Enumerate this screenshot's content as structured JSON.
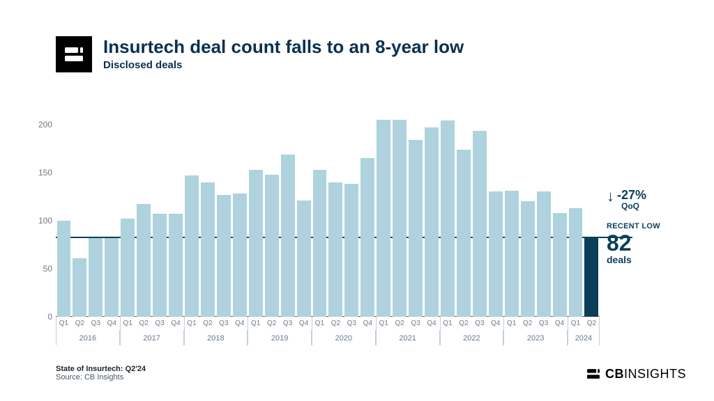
{
  "header": {
    "title": "Insurtech deal count falls to an 8-year low",
    "subtitle": "Disclosed deals"
  },
  "chart": {
    "type": "bar",
    "ylim": [
      0,
      210
    ],
    "yticks": [
      0,
      50,
      100,
      150,
      200
    ],
    "bar_color": "#aed2de",
    "highlight_color": "#0a3e5a",
    "background_color": "#ffffff",
    "reference_line_value": 82,
    "reference_line_color": "#0a3e5a",
    "years": [
      {
        "year": "2016",
        "quarters": 4
      },
      {
        "year": "2017",
        "quarters": 4
      },
      {
        "year": "2018",
        "quarters": 4
      },
      {
        "year": "2019",
        "quarters": 4
      },
      {
        "year": "2020",
        "quarters": 4
      },
      {
        "year": "2021",
        "quarters": 4
      },
      {
        "year": "2022",
        "quarters": 4
      },
      {
        "year": "2023",
        "quarters": 4
      },
      {
        "year": "2024",
        "quarters": 2
      }
    ],
    "bars": [
      {
        "label": "Q1",
        "value": 100,
        "highlight": false
      },
      {
        "label": "Q2",
        "value": 61,
        "highlight": false
      },
      {
        "label": "Q3",
        "value": 82,
        "highlight": false
      },
      {
        "label": "Q4",
        "value": 82,
        "highlight": false
      },
      {
        "label": "Q1",
        "value": 102,
        "highlight": false
      },
      {
        "label": "Q2",
        "value": 117,
        "highlight": false
      },
      {
        "label": "Q3",
        "value": 107,
        "highlight": false
      },
      {
        "label": "Q4",
        "value": 107,
        "highlight": false
      },
      {
        "label": "Q1",
        "value": 147,
        "highlight": false
      },
      {
        "label": "Q2",
        "value": 140,
        "highlight": false
      },
      {
        "label": "Q3",
        "value": 127,
        "highlight": false
      },
      {
        "label": "Q4",
        "value": 128,
        "highlight": false
      },
      {
        "label": "Q1",
        "value": 153,
        "highlight": false
      },
      {
        "label": "Q2",
        "value": 148,
        "highlight": false
      },
      {
        "label": "Q3",
        "value": 169,
        "highlight": false
      },
      {
        "label": "Q4",
        "value": 121,
        "highlight": false
      },
      {
        "label": "Q1",
        "value": 153,
        "highlight": false
      },
      {
        "label": "Q2",
        "value": 140,
        "highlight": false
      },
      {
        "label": "Q3",
        "value": 138,
        "highlight": false
      },
      {
        "label": "Q4",
        "value": 165,
        "highlight": false
      },
      {
        "label": "Q1",
        "value": 205,
        "highlight": false
      },
      {
        "label": "Q2",
        "value": 205,
        "highlight": false
      },
      {
        "label": "Q3",
        "value": 184,
        "highlight": false
      },
      {
        "label": "Q4",
        "value": 197,
        "highlight": false
      },
      {
        "label": "Q1",
        "value": 204,
        "highlight": false
      },
      {
        "label": "Q2",
        "value": 174,
        "highlight": false
      },
      {
        "label": "Q3",
        "value": 193,
        "highlight": false
      },
      {
        "label": "Q4",
        "value": 130,
        "highlight": false
      },
      {
        "label": "Q1",
        "value": 131,
        "highlight": false
      },
      {
        "label": "Q2",
        "value": 120,
        "highlight": false
      },
      {
        "label": "Q3",
        "value": 130,
        "highlight": false
      },
      {
        "label": "Q4",
        "value": 108,
        "highlight": false
      },
      {
        "label": "Q1",
        "value": 113,
        "highlight": false
      },
      {
        "label": "Q2",
        "value": 82,
        "highlight": true
      }
    ]
  },
  "callout": {
    "pct_change": "-27%",
    "pct_basis": "QoQ",
    "recent_label": "RECENT LOW",
    "big_number": "82",
    "unit": "deals"
  },
  "footer": {
    "report": "State of Insurtech: Q2'24",
    "source": "Source: CB Insights"
  },
  "brand": {
    "name_bold": "CB",
    "name_light": "INSIGHTS"
  },
  "colors": {
    "text_dark": "#0a3050",
    "text_muted": "#6b7a87",
    "accent": "#0a3e5a"
  }
}
